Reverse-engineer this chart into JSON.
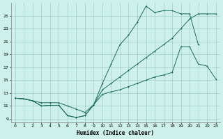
{
  "xlabel": "Humidex (Indice chaleur)",
  "bg_color": "#cef0ea",
  "grid_color": "#a0cfc8",
  "line_color": "#1a6b5a",
  "xlim": [
    -0.5,
    23.5
  ],
  "ylim": [
    8.5,
    27
  ],
  "yticks": [
    9,
    11,
    13,
    15,
    17,
    19,
    21,
    23,
    25
  ],
  "xticks": [
    0,
    1,
    2,
    3,
    4,
    5,
    6,
    7,
    8,
    9,
    10,
    11,
    12,
    13,
    14,
    15,
    16,
    17,
    18,
    19,
    20,
    21,
    22,
    23
  ],
  "s1_x": [
    0,
    1,
    2,
    3,
    4,
    5,
    6,
    7,
    8,
    9,
    10,
    11,
    12,
    13,
    14,
    15,
    16,
    17,
    18,
    19,
    20,
    21
  ],
  "s1_y": [
    12.2,
    12.1,
    11.8,
    11.0,
    11.1,
    11.1,
    9.5,
    9.2,
    9.5,
    11.2,
    14.5,
    17.5,
    20.5,
    22.0,
    24.0,
    26.5,
    25.5,
    25.8,
    25.8,
    25.3,
    25.3,
    20.5
  ],
  "s2_x": [
    0,
    1,
    2,
    3,
    4,
    5,
    6,
    7,
    8,
    9,
    10,
    11,
    12,
    13,
    14,
    15,
    16,
    17,
    18,
    19,
    20,
    21,
    22,
    23
  ],
  "s2_y": [
    12.2,
    12.1,
    11.8,
    11.5,
    11.5,
    11.5,
    11.0,
    10.5,
    10.0,
    11.2,
    13.5,
    14.5,
    15.5,
    16.5,
    17.5,
    18.5,
    19.5,
    20.5,
    21.5,
    23.0,
    24.5,
    25.3,
    25.3,
    25.3
  ],
  "s3_x": [
    0,
    1,
    2,
    3,
    4,
    5,
    6,
    7,
    8,
    9,
    10,
    11,
    12,
    13,
    14,
    15,
    16,
    17,
    18,
    19,
    20,
    21,
    22,
    23
  ],
  "s3_y": [
    12.2,
    12.1,
    11.8,
    11.0,
    11.1,
    11.1,
    9.5,
    9.2,
    9.5,
    11.2,
    12.8,
    13.2,
    13.5,
    14.0,
    14.5,
    15.0,
    15.5,
    15.8,
    16.2,
    20.2,
    20.2,
    17.5,
    17.2,
    15.2
  ]
}
